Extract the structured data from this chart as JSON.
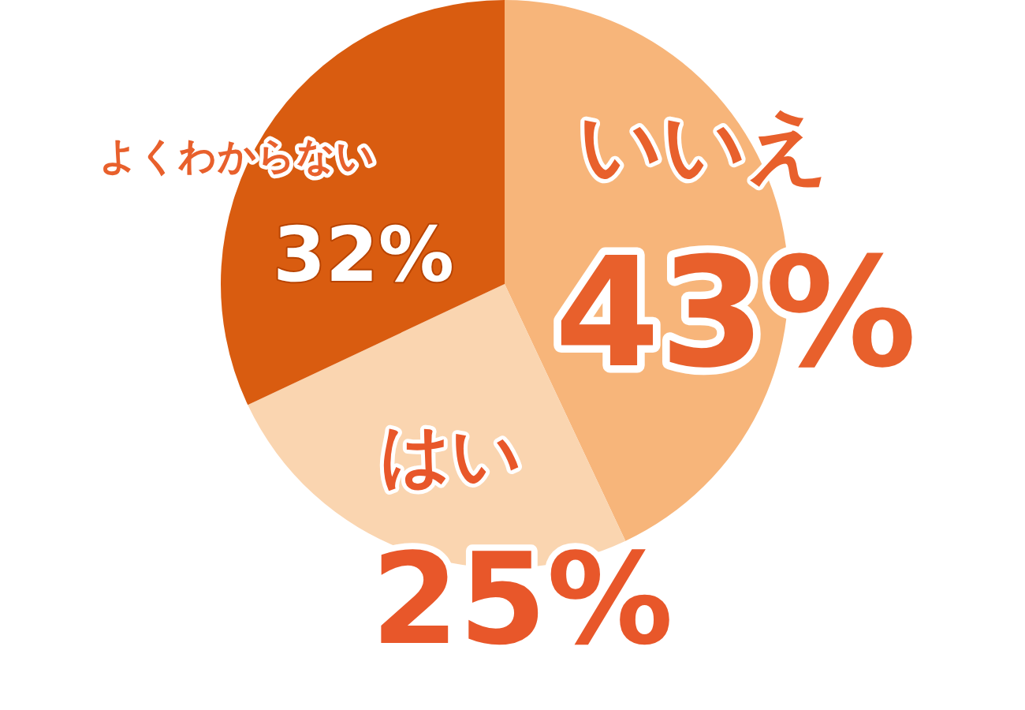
{
  "chart_data": {
    "type": "pie",
    "categories": [
      "いいえ",
      "はい",
      "よくわからない"
    ],
    "values": [
      43,
      25,
      32
    ],
    "value_labels": [
      "43%",
      "25%",
      "32%"
    ],
    "colors": [
      "#f7b57a",
      "#fad5b0",
      "#d95c10"
    ],
    "legend": false
  }
}
